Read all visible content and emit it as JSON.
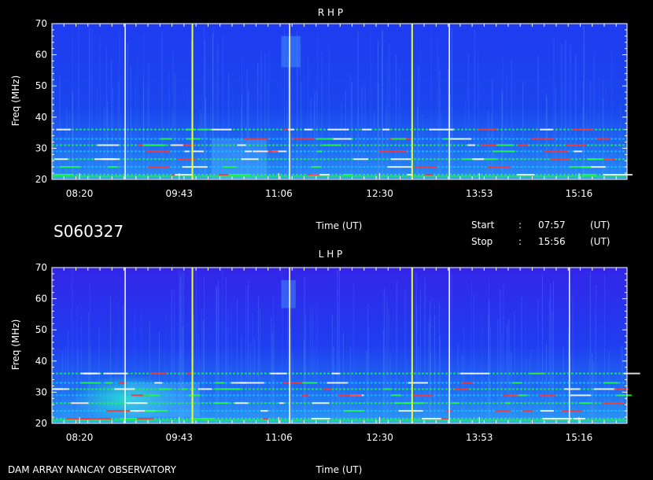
{
  "header": {
    "id_code": "S060327",
    "start_label": "Start",
    "start_sep": ":",
    "start_time": "07:57",
    "start_unit": "(UT)",
    "stop_label": "Stop",
    "stop_sep": ":",
    "stop_time": "15:56",
    "stop_unit": "(UT)"
  },
  "footer": {
    "observatory": "DAM ARRAY   NANCAY OBSERVATORY"
  },
  "colors": {
    "background": "#000000",
    "spectrogram_base": "#1432e6",
    "band_cyan": "#19c8ff",
    "band_green": "#22ff40",
    "band_red": "#ff3030",
    "marker_yellow": "#e8ff30",
    "marker_white": "#ffffff"
  },
  "chart_data": [
    {
      "type": "heatmap",
      "title": "R H P",
      "xlabel": "Time (UT)",
      "ylabel": "Freq (MHz)",
      "x_ticks": [
        "08:20",
        "09:43",
        "11:06",
        "12:30",
        "13:53",
        "15:16"
      ],
      "x_tick_minutes": [
        500,
        583,
        666,
        750,
        833,
        916
      ],
      "x_range_minutes": [
        477,
        956
      ],
      "y_ticks": [
        20,
        30,
        40,
        50,
        60,
        70
      ],
      "ylim": [
        20,
        70
      ],
      "white_markers_minutes": [
        538,
        675,
        808
      ],
      "yellow_markers_minutes": [
        594,
        777
      ],
      "emission_bands_mhz": [
        21.5,
        24,
        26.5,
        29,
        31,
        33,
        36
      ],
      "bursts": [
        {
          "start_min": 668,
          "end_min": 684,
          "fmin": 56,
          "fmax": 66
        },
        {
          "start_min": 610,
          "end_min": 656,
          "fmin": 20,
          "fmax": 33
        }
      ]
    },
    {
      "type": "heatmap",
      "title": "L H P",
      "xlabel": "Time (UT)",
      "ylabel": "Freq (MHz)",
      "x_ticks": [
        "08:20",
        "09:43",
        "11:06",
        "12:30",
        "13:53",
        "15:16"
      ],
      "x_tick_minutes": [
        500,
        583,
        666,
        750,
        833,
        916
      ],
      "x_range_minutes": [
        477,
        956
      ],
      "y_ticks": [
        20,
        30,
        40,
        50,
        60,
        70
      ],
      "ylim": [
        20,
        70
      ],
      "white_markers_minutes": [
        538,
        675,
        808,
        908
      ],
      "yellow_markers_minutes": [
        594,
        777
      ],
      "emission_bands_mhz": [
        21.5,
        24,
        26.5,
        29,
        31,
        33,
        36
      ],
      "bursts": [
        {
          "start_min": 668,
          "end_min": 680,
          "fmin": 57,
          "fmax": 66
        },
        {
          "start_min": 540,
          "end_min": 600,
          "fmin": 22,
          "fmax": 33
        }
      ]
    }
  ]
}
